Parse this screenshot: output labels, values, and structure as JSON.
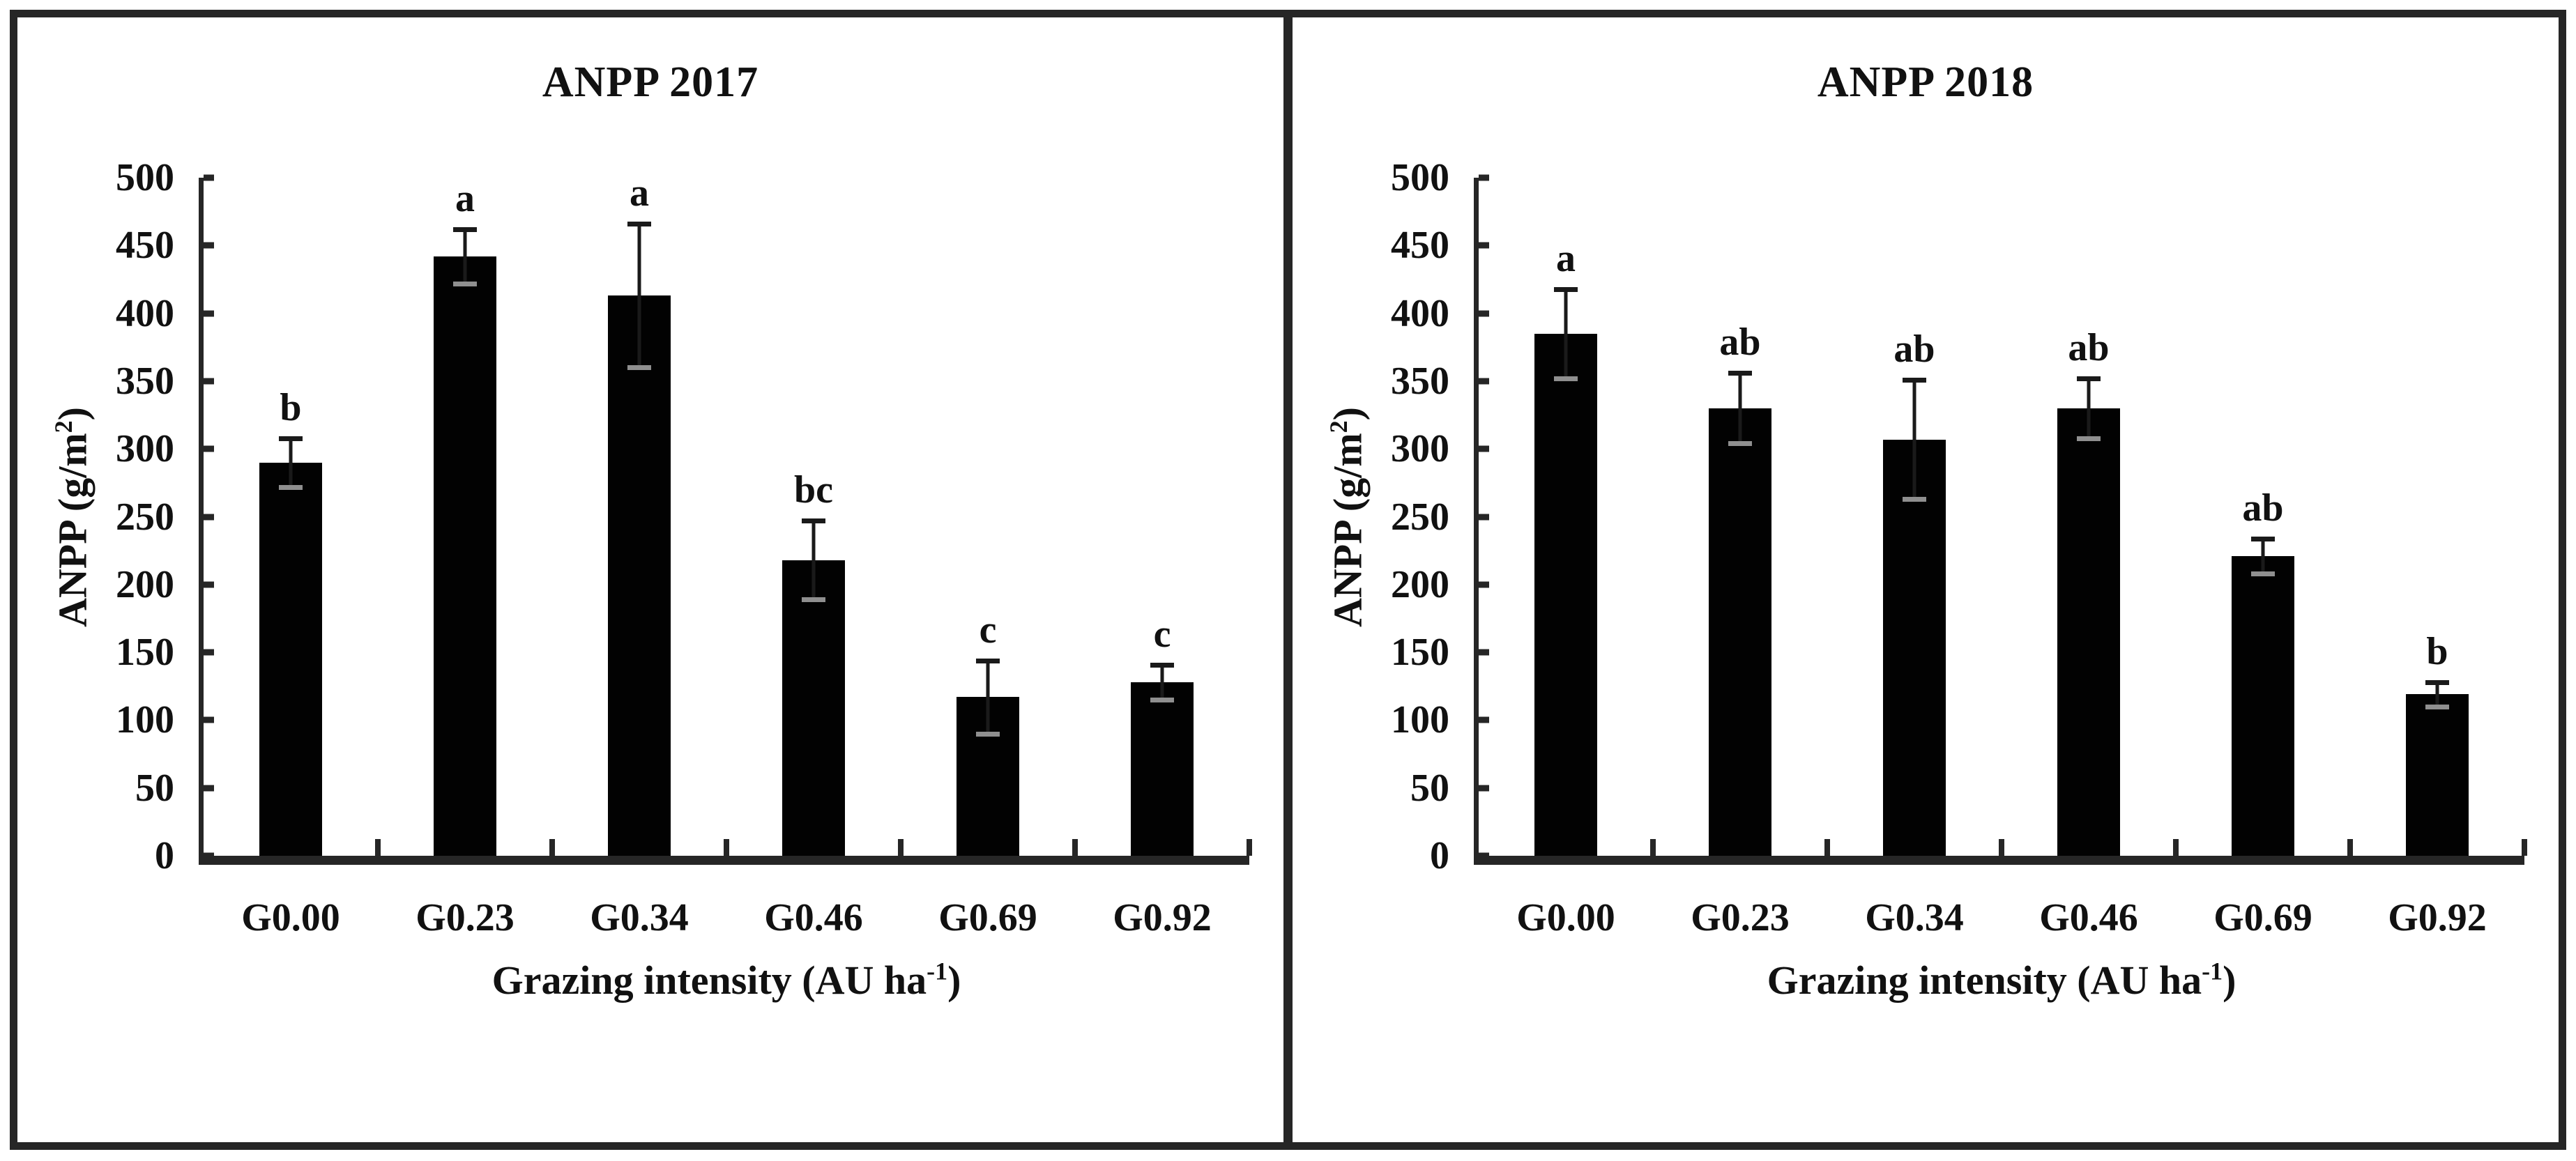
{
  "figure": {
    "background": "#ffffff",
    "border_color": "#262626",
    "bar_color": "#020202",
    "axis_color": "#262626",
    "error_bar_color": "#1a1a1a",
    "error_inner_cap_color": "#8f8f8f"
  },
  "chart_data": [
    {
      "type": "bar",
      "title": "ANPP 2017",
      "ylabel": {
        "pre": "ANPP (g/m",
        "sup": "2",
        "post": ")"
      },
      "xlabel": {
        "pre": "Grazing intensity (AU ha",
        "sup": "-1",
        "post": ")"
      },
      "categories": [
        "G0.00",
        "G0.23",
        "G0.34",
        "G0.46",
        "G0.69",
        "G0.92"
      ],
      "values": [
        290,
        442,
        413,
        218,
        117,
        128
      ],
      "errors": [
        18,
        20,
        53,
        29,
        27,
        13
      ],
      "sig_letters": [
        "b",
        "a",
        "a",
        "bc",
        "c",
        "c"
      ],
      "ylim": [
        0,
        500
      ],
      "yticks": [
        0,
        50,
        100,
        150,
        200,
        250,
        300,
        350,
        400,
        450,
        500
      ],
      "grid": false,
      "legend_position": "none"
    },
    {
      "type": "bar",
      "title": "ANPP 2018",
      "ylabel": {
        "pre": "ANPP (g/m",
        "sup": "2",
        "post": ")"
      },
      "xlabel": {
        "pre": "Grazing intensity (AU ha",
        "sup": "-1",
        "post": ")"
      },
      "categories": [
        "G0.00",
        "G0.23",
        "G0.34",
        "G0.46",
        "G0.69",
        "G0.92"
      ],
      "values": [
        385,
        330,
        307,
        330,
        221,
        119
      ],
      "errors": [
        33,
        26,
        44,
        22,
        13,
        9
      ],
      "sig_letters": [
        "a",
        "ab",
        "ab",
        "ab",
        "ab",
        "b"
      ],
      "ylim": [
        0,
        500
      ],
      "yticks": [
        0,
        50,
        100,
        150,
        200,
        250,
        300,
        350,
        400,
        450,
        500
      ],
      "grid": false,
      "legend_position": "none"
    }
  ]
}
